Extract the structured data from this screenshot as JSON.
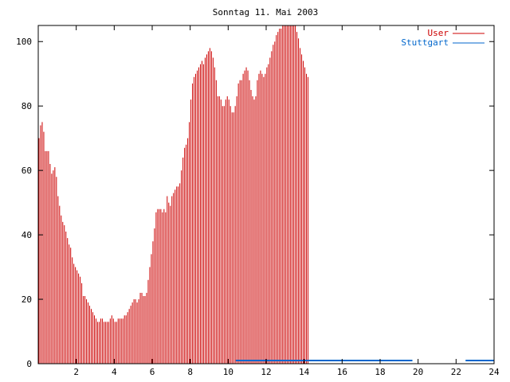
{
  "chart_data": {
    "type": "bar",
    "title": "Sonntag 11. Mai 2003",
    "xlabel": "",
    "ylabel": "",
    "xlim": [
      0,
      24
    ],
    "ylim": [
      0,
      105
    ],
    "x_ticks": [
      "2",
      "4",
      "6",
      "8",
      "10",
      "12",
      "14",
      "16",
      "18",
      "20",
      "22",
      "24"
    ],
    "x_tick_values": [
      2,
      4,
      6,
      8,
      10,
      12,
      14,
      16,
      18,
      20,
      22,
      24
    ],
    "y_ticks": [
      "0",
      "20",
      "40",
      "60",
      "80",
      "100"
    ],
    "y_tick_values": [
      0,
      20,
      40,
      60,
      80,
      100
    ],
    "legend_position": "top-right",
    "grid": false,
    "series": [
      {
        "name": "User",
        "color": "#cc0000",
        "style": "impulses",
        "x_step": 0.0833,
        "values": [
          70,
          74,
          75,
          72,
          66,
          66,
          66,
          62,
          59,
          60,
          61,
          58,
          52,
          49,
          46,
          44,
          43,
          41,
          39,
          37,
          36,
          33,
          31,
          30,
          29,
          28,
          27,
          25,
          21,
          21,
          20,
          19,
          18,
          17,
          16,
          15,
          14,
          13,
          13,
          14,
          14,
          13,
          13,
          13,
          13,
          14,
          15,
          14,
          13,
          13,
          14,
          14,
          14,
          14,
          15,
          15,
          16,
          17,
          18,
          19,
          20,
          20,
          19,
          20,
          22,
          22,
          21,
          21,
          22,
          26,
          30,
          34,
          38,
          42,
          47,
          48,
          48,
          48,
          47,
          48,
          47,
          52,
          50,
          49,
          52,
          53,
          54,
          55,
          55,
          56,
          60,
          64,
          67,
          68,
          70,
          75,
          82,
          87,
          89,
          90,
          91,
          92,
          93,
          94,
          93,
          95,
          96,
          97,
          98,
          97,
          95,
          92,
          88,
          83,
          83,
          82,
          80,
          80,
          82,
          83,
          82,
          80,
          78,
          78,
          80,
          83,
          87,
          88,
          88,
          90,
          91,
          92,
          91,
          88,
          85,
          83,
          82,
          83,
          88,
          90,
          91,
          90,
          89,
          90,
          92,
          93,
          95,
          97,
          99,
          100,
          102,
          103,
          104,
          104,
          105,
          105,
          105,
          105,
          105,
          105,
          105,
          105,
          105,
          103,
          101,
          98,
          96,
          94,
          92,
          90,
          89
        ]
      },
      {
        "name": "Stuttgart",
        "color": "#0066cc",
        "style": "line",
        "points": [
          [
            10.4,
            1
          ],
          [
            19.7,
            1
          ],
          [
            22.5,
            1
          ],
          [
            24,
            1
          ]
        ]
      }
    ]
  }
}
